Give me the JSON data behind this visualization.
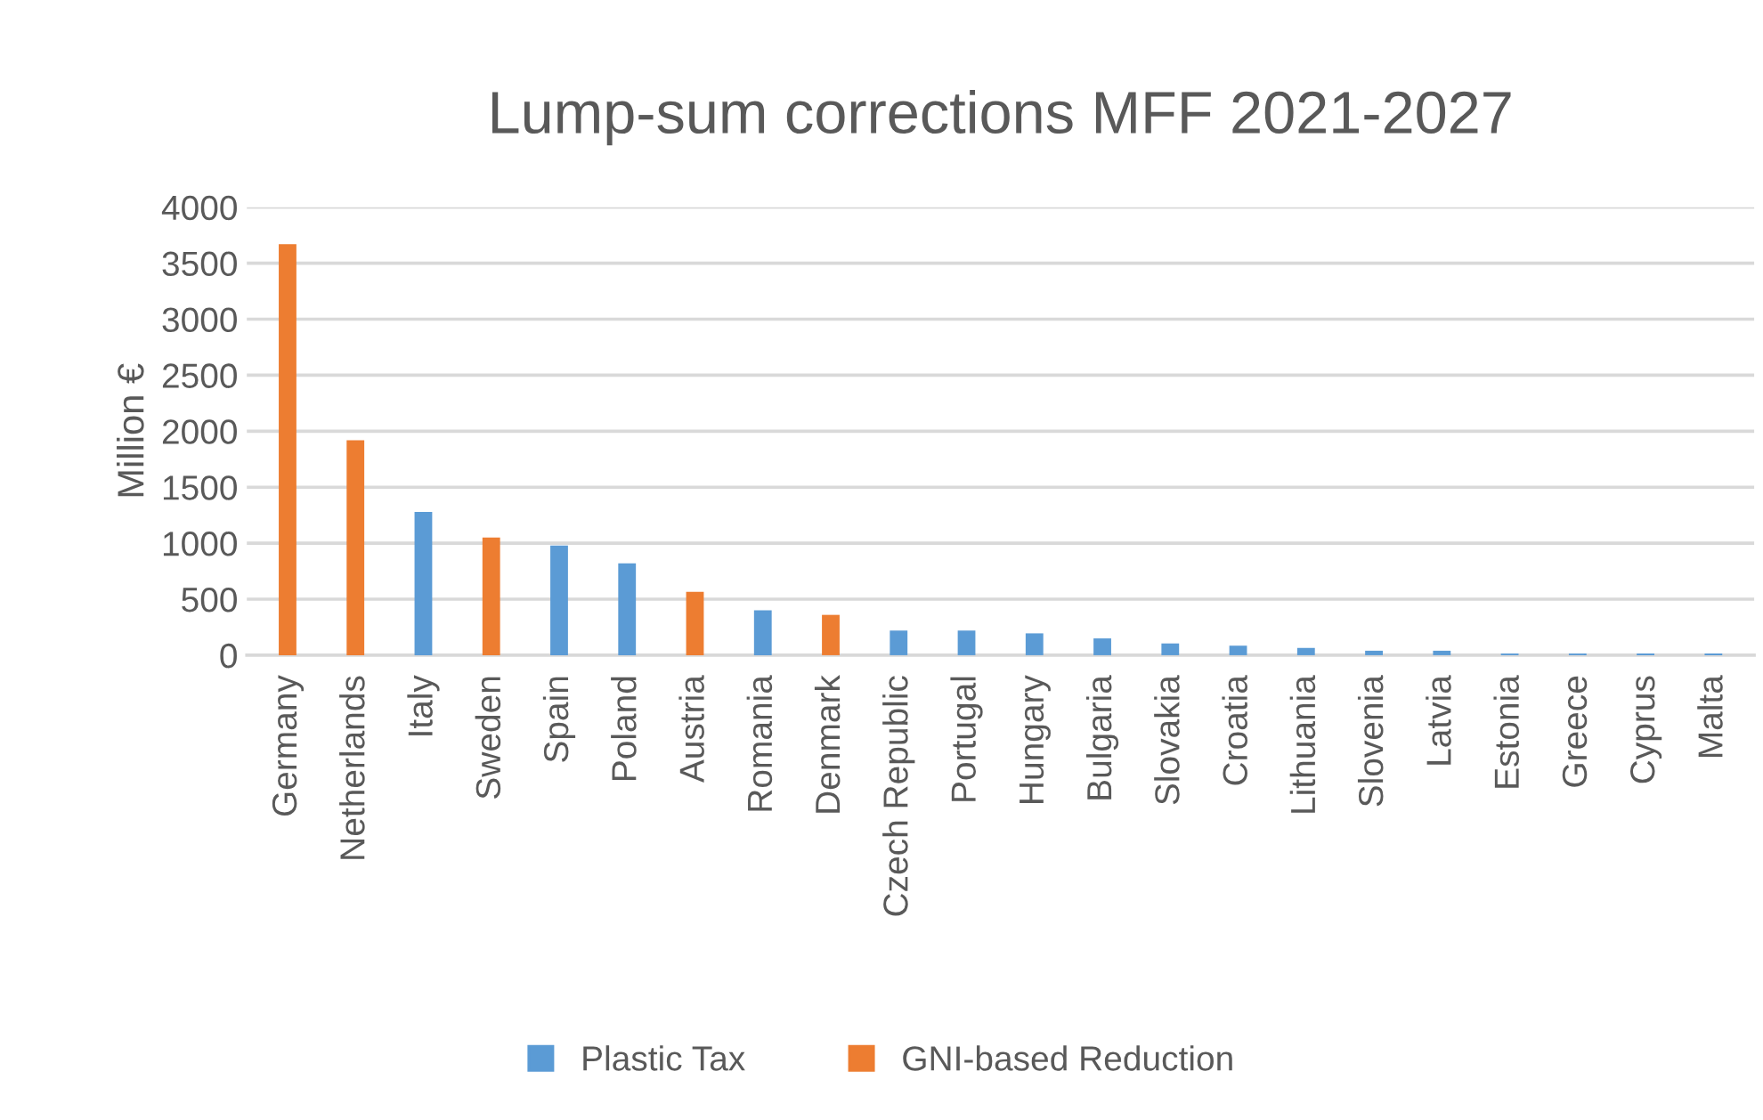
{
  "chart_data": {
    "type": "bar",
    "title": "Lump-sum corrections MFF 2021-2027",
    "ylabel": "Million €",
    "categories": [
      "Germany",
      "Netherlands",
      "Italy",
      "Sweden",
      "Spain",
      "Poland",
      "Austria",
      "Romania",
      "Denmark",
      "Czech Republic",
      "Portugal",
      "Hungary",
      "Bulgaria",
      "Slovakia",
      "Croatia",
      "Lithuania",
      "Slovenia",
      "Latvia",
      "Estonia",
      "Greece",
      "Cyprus",
      "Malta"
    ],
    "series": [
      {
        "name": "Plastic Tax",
        "color": "#5b9bd5",
        "values": [
          null,
          null,
          1280,
          null,
          980,
          820,
          null,
          400,
          null,
          220,
          220,
          195,
          150,
          105,
          85,
          65,
          40,
          40,
          15,
          15,
          15,
          15
        ]
      },
      {
        "name": "GNI-based Reduction",
        "color": "#ed7d31",
        "values": [
          3670,
          1920,
          null,
          1050,
          null,
          null,
          565,
          null,
          360,
          null,
          null,
          null,
          null,
          null,
          null,
          null,
          null,
          null,
          null,
          null,
          null,
          null
        ]
      }
    ],
    "ylim": [
      0,
      4000
    ],
    "yticks": [
      0,
      500,
      1000,
      1500,
      2000,
      2500,
      3000,
      3500,
      4000
    ],
    "grid": "y",
    "legend": "bottom"
  }
}
